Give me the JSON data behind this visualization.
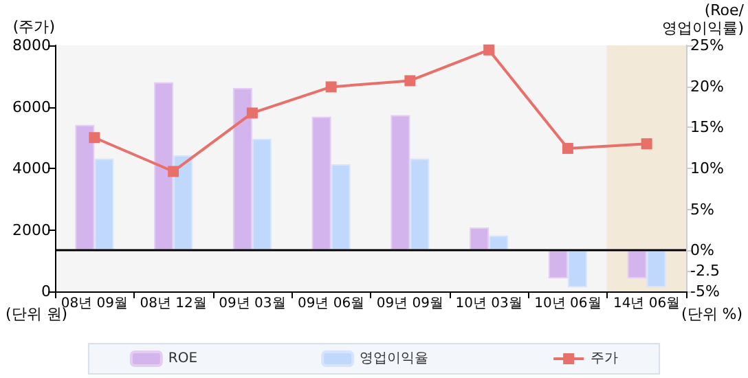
{
  "chart_data": {
    "type": "bar",
    "ylabel": "(주가)",
    "y2label": "(Roe/\n영업이익률)",
    "categories": [
      "08년 09월",
      "08년 12월",
      "09년 03월",
      "09년 06월",
      "09년 09월",
      "10년 03월",
      "10년 06월",
      "14년 06월"
    ],
    "series": [
      {
        "name": "ROE",
        "axis": "y2",
        "color": "#d4b4ec",
        "values": [
          15.3,
          20.5,
          19.8,
          16.3,
          16.5,
          2.8,
          -3.4,
          -3.4
        ]
      },
      {
        "name": "영업이익율",
        "axis": "y2",
        "color": "#c0d8fc",
        "values": [
          11.2,
          11.6,
          13.6,
          10.5,
          11.2,
          1.8,
          -4.5,
          -4.5
        ]
      },
      {
        "name": "주가",
        "type": "line",
        "color": "#e8706a",
        "marker": "square",
        "values": [
          5000,
          3900,
          5800,
          6650,
          6850,
          7850,
          4650,
          4800
        ]
      }
    ],
    "ylim": [
      0,
      8000
    ],
    "yticks": [
      0,
      2000,
      4000,
      6000,
      8000
    ],
    "y2lim": [
      -5,
      25
    ],
    "y2ticks": [
      {
        "value": -5,
        "label": "-5%"
      },
      {
        "value": -2.5,
        "label": "-2.5"
      },
      {
        "value": 0,
        "label": "0%"
      },
      {
        "value": 5,
        "label": "5%"
      },
      {
        "value": 10,
        "label": "10%"
      },
      {
        "value": 15,
        "label": "15%"
      },
      {
        "value": 20,
        "label": "20%"
      },
      {
        "value": 25,
        "label": "25%"
      }
    ],
    "ref_lines": [
      {
        "axis": "y2",
        "value": 0,
        "color": "#000000"
      }
    ],
    "bands": [
      {
        "axis": "x",
        "from": "14년 06월",
        "to": "14년 06월",
        "color": "#f3e9d8"
      }
    ],
    "annotations": [
      "(단위 원)",
      "(단위 %)"
    ],
    "legend": "bottom",
    "grid": false
  }
}
